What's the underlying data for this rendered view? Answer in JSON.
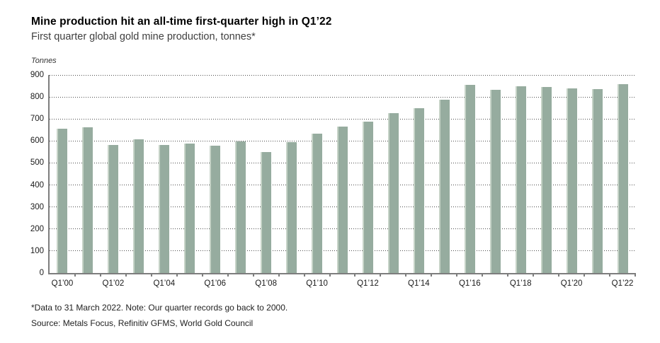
{
  "header": {
    "title": "Mine production hit an all-time first-quarter high in Q1’22",
    "subtitle": "First quarter global gold mine production, tonnes*"
  },
  "chart": {
    "unit_label": "Tonnes"
  },
  "chart_data": {
    "type": "bar",
    "title": "Mine production hit an all-time first-quarter high in Q1’22",
    "subtitle": "First quarter global gold mine production, tonnes*",
    "xlabel": "",
    "ylabel": "Tonnes",
    "ylim": [
      0,
      900
    ],
    "ytick_step": 100,
    "ytick_labels": [
      "0",
      "100",
      "200",
      "300",
      "400",
      "500",
      "600",
      "700",
      "800",
      "900"
    ],
    "grid": "horizontal-dotted",
    "legend": "none",
    "bar_color": "#96ac9f",
    "bar_edge_color": "#c6d3c7",
    "categories": [
      "Q1’00",
      "Q1’01",
      "Q1’02",
      "Q1’03",
      "Q1’04",
      "Q1’05",
      "Q1’06",
      "Q1’07",
      "Q1’08",
      "Q1’09",
      "Q1’10",
      "Q1’11",
      "Q1’12",
      "Q1’13",
      "Q1’14",
      "Q1’15",
      "Q1’16",
      "Q1’17",
      "Q1’18",
      "Q1’19",
      "Q1’20",
      "Q1’21",
      "Q1’22"
    ],
    "values": [
      655,
      662,
      582,
      608,
      581,
      588,
      578,
      598,
      550,
      594,
      633,
      667,
      687,
      727,
      750,
      789,
      855,
      831,
      850,
      845,
      839,
      835,
      857
    ],
    "x_label_every": 2
  },
  "footer": {
    "note": "*Data to 31 March 2022. Note: Our quarter records go back to 2000.",
    "source": "Source: Metals Focus, Refinitiv GFMS, World Gold Council"
  }
}
